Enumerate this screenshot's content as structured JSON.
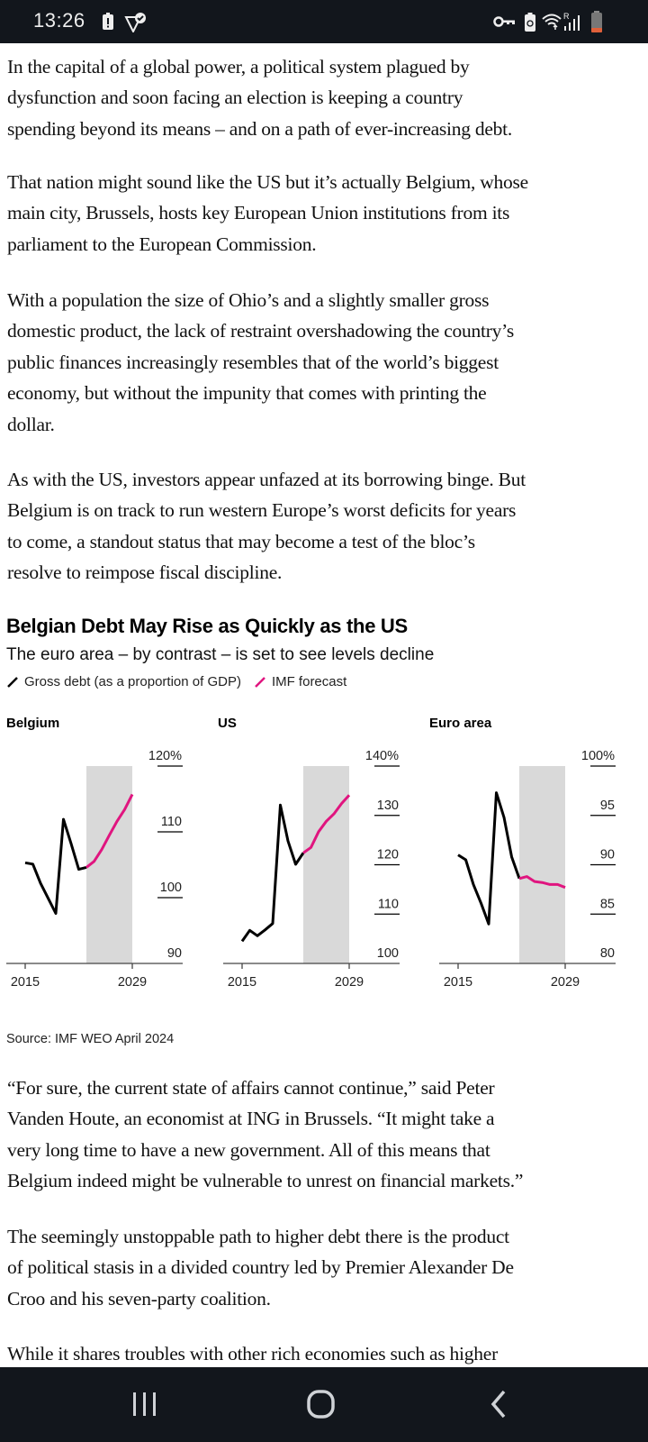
{
  "status_bar": {
    "time": "13:26",
    "icons_left": [
      "battery-alert-icon",
      "shield-check-icon"
    ],
    "icons_right": [
      "vpn-key-icon",
      "battery-saver-icon",
      "wifi-icon",
      "signal-roaming-icon",
      "battery-low-icon"
    ]
  },
  "article": {
    "paragraphs_top": [
      {
        "lines": [
          "In the capital of a global power, a political system plagued by",
          "dysfunction and soon facing an election is keeping a country",
          "spending beyond its means – and on a path of ever-increasing debt."
        ]
      },
      {
        "lines": [
          "That nation might sound like the US but it’s actually Belgium, whose",
          "main city, Brussels, hosts key European Union institutions from its",
          "parliament to the European Commission."
        ]
      },
      {
        "lines": [
          "With a population the size of Ohio’s and a slightly smaller gross",
          "domestic product, the lack of restraint overshadowing the country’s",
          "public finances increasingly resembles that of the world’s biggest",
          "economy, but without the impunity that comes with printing the",
          "dollar."
        ]
      },
      {
        "lines": [
          "As with the US, investors appear unfazed at its borrowing binge. But",
          "Belgium is on track to run western Europe’s worst deficits for years",
          "to come, a standout status that may become a test of the bloc’s",
          "resolve to reimpose fiscal discipline."
        ]
      }
    ],
    "paragraphs_bottom": [
      {
        "lines": [
          "“For sure, the current state of affairs cannot continue,” said Peter",
          "Vanden Houte, an economist at ING in Brussels. “It might take a",
          "very long time to have a new government. All of this means that",
          "Belgium indeed might be vulnerable to unrest on financial markets.”"
        ]
      },
      {
        "lines": [
          "The seemingly unstoppable path to higher debt there is the product",
          "of political stasis in a divided country led by Premier Alexander De",
          "Croo and his seven-party coalition."
        ]
      },
      {
        "lines": [
          "While it shares troubles with other rich economies such as higher"
        ]
      }
    ]
  },
  "figure": {
    "title": "Belgian Debt May Rise as Quickly as the US",
    "subtitle": "The euro area – by contrast – is set to see levels decline",
    "legend": [
      {
        "label": "Gross debt (as a proportion of GDP)",
        "color": "#000000"
      },
      {
        "label": "IMF forecast",
        "color": "#e0157f"
      }
    ],
    "source": "Source: IMF WEO April 2024",
    "forecast_shading_color": "#d9d9d9"
  },
  "chart_data": [
    {
      "type": "line",
      "title": "Belgium",
      "x_tick_labels": [
        "2015",
        "2029"
      ],
      "xlim": [
        2015,
        2029
      ],
      "ylim": [
        90,
        120
      ],
      "y_ticks": [
        {
          "value": 120,
          "label": "120%"
        },
        {
          "value": 110,
          "label": "110"
        },
        {
          "value": 100,
          "label": "100"
        },
        {
          "value": 90,
          "label": "90"
        }
      ],
      "forecast_range": [
        2023,
        2029
      ],
      "series": [
        {
          "name": "Gross debt (as a proportion of GDP)",
          "color": "#000000",
          "x": [
            2015,
            2016,
            2017,
            2018,
            2019,
            2020,
            2021,
            2022,
            2023
          ],
          "y": [
            105.3,
            105.1,
            102.2,
            99.9,
            97.6,
            111.9,
            108.2,
            104.3,
            104.6
          ]
        },
        {
          "name": "IMF forecast",
          "color": "#e0157f",
          "x": [
            2023,
            2024,
            2025,
            2026,
            2027,
            2028,
            2029
          ],
          "y": [
            104.6,
            105.5,
            107.3,
            109.5,
            111.6,
            113.4,
            115.7
          ]
        }
      ]
    },
    {
      "type": "line",
      "title": "US",
      "x_tick_labels": [
        "2015",
        "2029"
      ],
      "xlim": [
        2015,
        2029
      ],
      "ylim": [
        100,
        140
      ],
      "y_ticks": [
        {
          "value": 140,
          "label": "140%"
        },
        {
          "value": 130,
          "label": "130"
        },
        {
          "value": 120,
          "label": "120"
        },
        {
          "value": 110,
          "label": "110"
        },
        {
          "value": 100,
          "label": "100"
        }
      ],
      "forecast_range": [
        2023,
        2029
      ],
      "series": [
        {
          "name": "Gross debt (as a proportion of GDP)",
          "color": "#000000",
          "x": [
            2015,
            2016,
            2017,
            2018,
            2019,
            2020,
            2021,
            2022,
            2023
          ],
          "y": [
            104.5,
            106.7,
            105.6,
            106.8,
            108.1,
            132.1,
            124.8,
            120.1,
            122.4
          ]
        },
        {
          "name": "IMF forecast",
          "color": "#e0157f",
          "x": [
            2023,
            2024,
            2025,
            2026,
            2027,
            2028,
            2029
          ],
          "y": [
            122.4,
            123.5,
            126.7,
            128.8,
            130.3,
            132.4,
            134.1
          ]
        }
      ]
    },
    {
      "type": "line",
      "title": "Euro area",
      "x_tick_labels": [
        "2015",
        "2029"
      ],
      "xlim": [
        2015,
        2029
      ],
      "ylim": [
        80,
        100
      ],
      "y_ticks": [
        {
          "value": 100,
          "label": "100%"
        },
        {
          "value": 95,
          "label": "95"
        },
        {
          "value": 90,
          "label": "90"
        },
        {
          "value": 85,
          "label": "85"
        },
        {
          "value": 80,
          "label": "80"
        }
      ],
      "forecast_range": [
        2023,
        2029
      ],
      "series": [
        {
          "name": "Gross debt (as a proportion of GDP)",
          "color": "#000000",
          "x": [
            2015,
            2016,
            2017,
            2018,
            2019,
            2020,
            2021,
            2022,
            2023
          ],
          "y": [
            91.0,
            90.5,
            88.0,
            86.1,
            84.0,
            97.3,
            94.8,
            90.8,
            88.6
          ]
        },
        {
          "name": "IMF forecast",
          "color": "#e0157f",
          "x": [
            2023,
            2024,
            2025,
            2026,
            2027,
            2028,
            2029
          ],
          "y": [
            88.6,
            88.8,
            88.3,
            88.2,
            88.0,
            88.0,
            87.7
          ]
        }
      ]
    }
  ],
  "nav_bar": {
    "buttons": [
      "recent-apps",
      "home",
      "back"
    ]
  }
}
